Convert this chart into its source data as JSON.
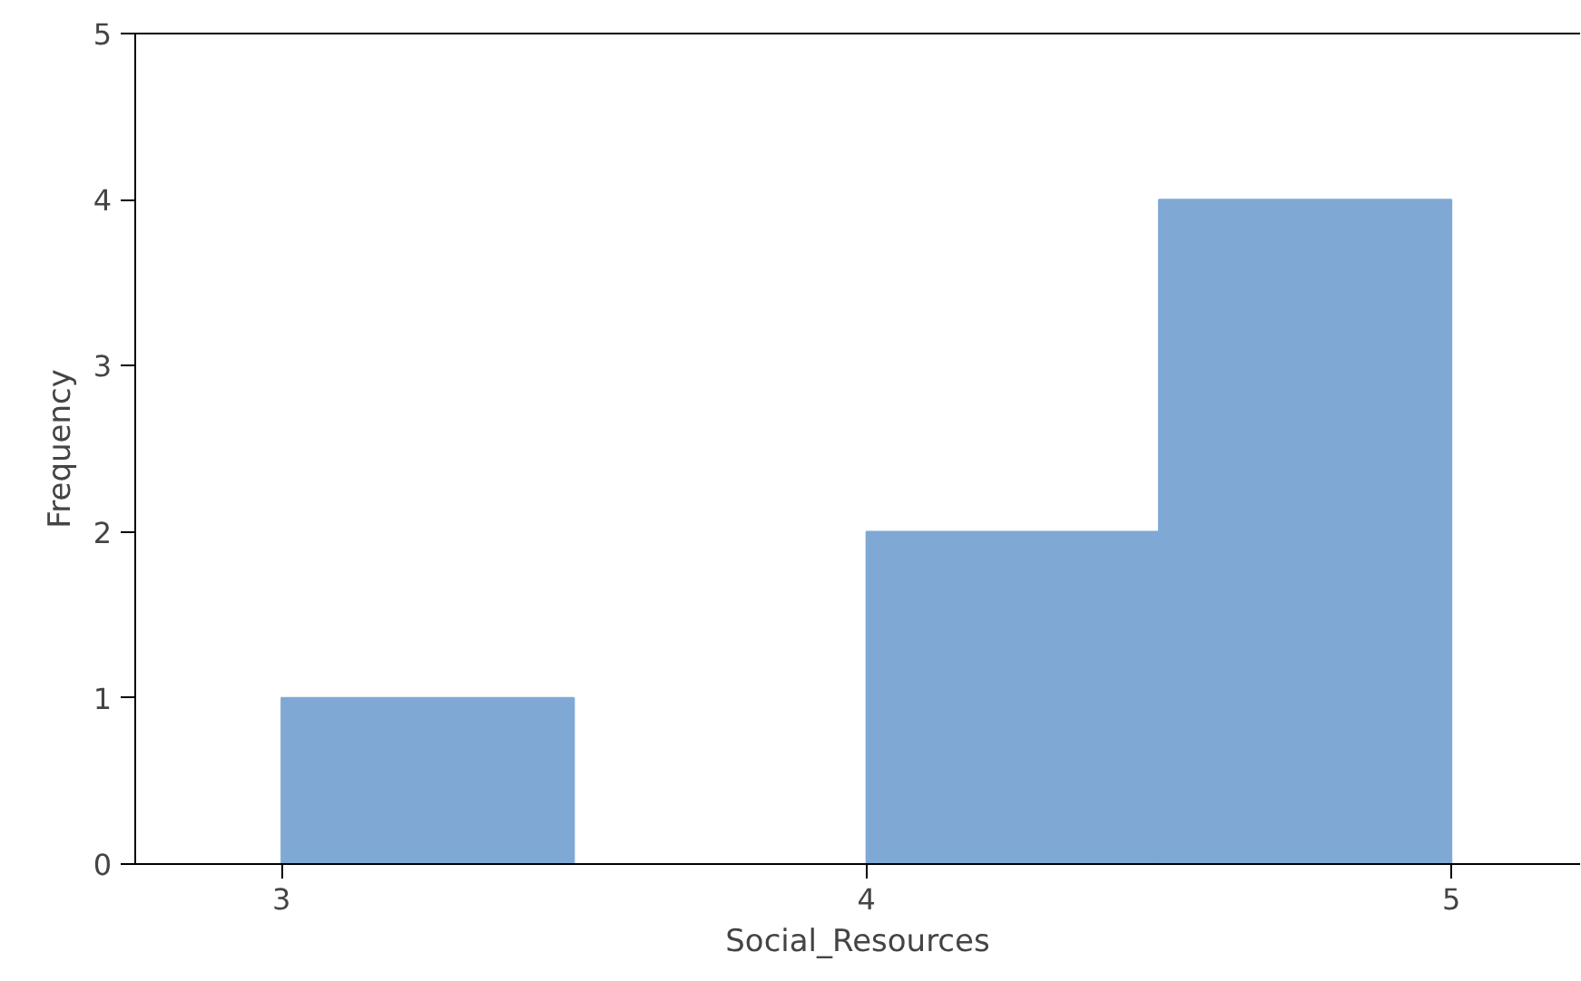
{
  "chart_data": {
    "type": "histogram",
    "xlabel": "Social_Resources",
    "ylabel": "Frequency",
    "bins": [
      3,
      3.5,
      4,
      4.5,
      5
    ],
    "values": [
      1,
      0,
      2,
      4
    ],
    "color": "#7fa9d4",
    "xlim": [
      2.75,
      5.22
    ],
    "xticks": [
      3,
      4,
      5
    ],
    "ylim": [
      0,
      5
    ],
    "yticks": [
      0,
      1,
      2,
      3,
      4,
      5
    ],
    "grid": false
  }
}
